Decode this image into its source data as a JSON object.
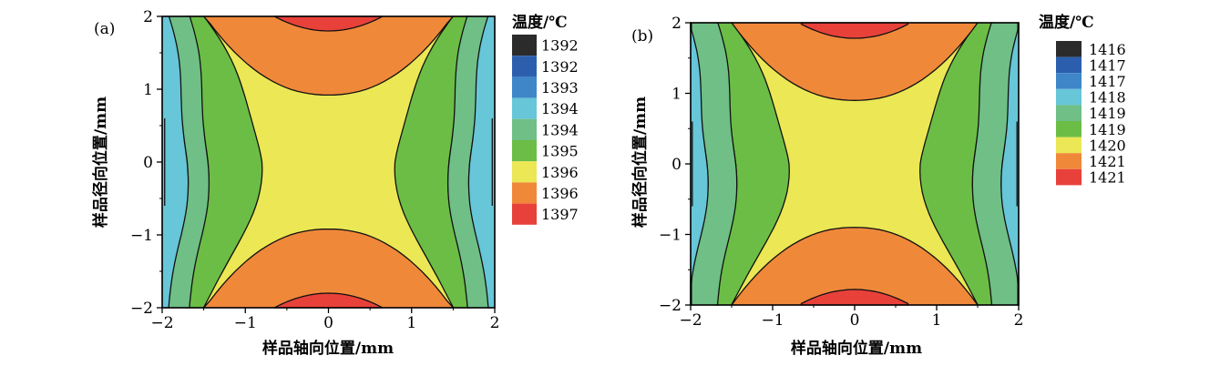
{
  "chart_data": [
    {
      "type": "contour",
      "panel_label": "(a)",
      "xlabel": "样品轴向位置/mm",
      "ylabel": "样品径向位置/mm",
      "xlim": [
        -2,
        2
      ],
      "ylim": [
        -2,
        2
      ],
      "xticks": [
        "−2",
        "−1",
        "0",
        "1",
        "2"
      ],
      "yticks": [
        "−2",
        "−1",
        "0",
        "1",
        "2"
      ],
      "legend_title": "温度/℃",
      "levels": [
        "1392",
        "1392",
        "1393",
        "1394",
        "1394",
        "1395",
        "1396",
        "1396",
        "1397"
      ],
      "level_colors": [
        "#2b2b2b",
        "#2b5fae",
        "#3f86c8",
        "#67c6d8",
        "#6fbf86",
        "#6cbd45",
        "#ebe755",
        "#f0883a",
        "#e8413a"
      ],
      "x_boundaries": {
        "cyan_outer": 1.97,
        "cyan_green": 1.7,
        "green_darkgreen": 1.45,
        "darkgreen_yellow": 0.8
      },
      "y_boundaries": {
        "yellow_orange": 0.92,
        "orange_red": 1.8
      }
    },
    {
      "type": "contour",
      "panel_label": "(b)",
      "xlabel": "样品轴向位置/mm",
      "ylabel": "样品径向位置/mm",
      "xlim": [
        -2,
        2
      ],
      "ylim": [
        -2,
        2
      ],
      "xticks": [
        "−2",
        "−1",
        "0",
        "1",
        "2"
      ],
      "yticks": [
        "−2",
        "−1",
        "0",
        "1",
        "2"
      ],
      "legend_title": "温度/℃",
      "levels": [
        "1416",
        "1417",
        "1417",
        "1418",
        "1419",
        "1419",
        "1420",
        "1421",
        "1421"
      ],
      "level_colors": [
        "#2b2b2b",
        "#2b5fae",
        "#3f86c8",
        "#67c6d8",
        "#6fbf86",
        "#6cbd45",
        "#ebe755",
        "#f0883a",
        "#e8413a"
      ],
      "x_boundaries": {
        "cyan_outer": 1.98,
        "cyan_green": 1.8,
        "green_darkgreen": 1.45,
        "darkgreen_yellow": 0.8
      },
      "y_boundaries": {
        "yellow_orange": 0.9,
        "orange_red": 1.78
      }
    }
  ]
}
